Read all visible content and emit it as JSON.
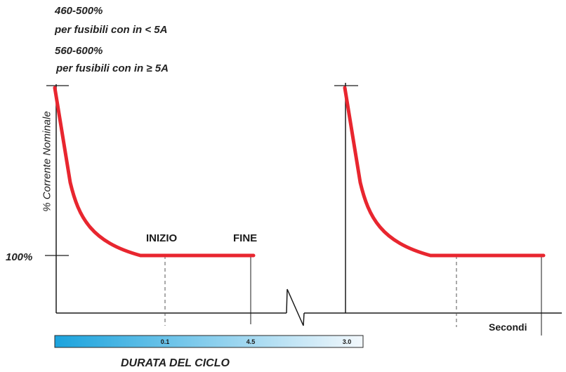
{
  "annotations": {
    "range_small": "460-500%",
    "range_small_note": "per fusibili con in < 5A",
    "range_large": "560-600%",
    "range_large_note": "per fusibili con in ≥ 5A"
  },
  "y_axis": {
    "label": "% Corrente Nominale",
    "nominal_tick": "100%"
  },
  "markers": {
    "start": "INIZIO",
    "end": "FINE"
  },
  "x_axis": {
    "unit": "Secondi"
  },
  "duration_bar": {
    "values": [
      "0.1",
      "4.5",
      "3.0"
    ],
    "gradient_start": "#1ba3dd",
    "gradient_end": "#f3f8fc",
    "caption": "DURATA DEL CICLO"
  },
  "colors": {
    "curve": "#e8262f",
    "axis": "#1a1a1a",
    "guide": "#555555"
  }
}
